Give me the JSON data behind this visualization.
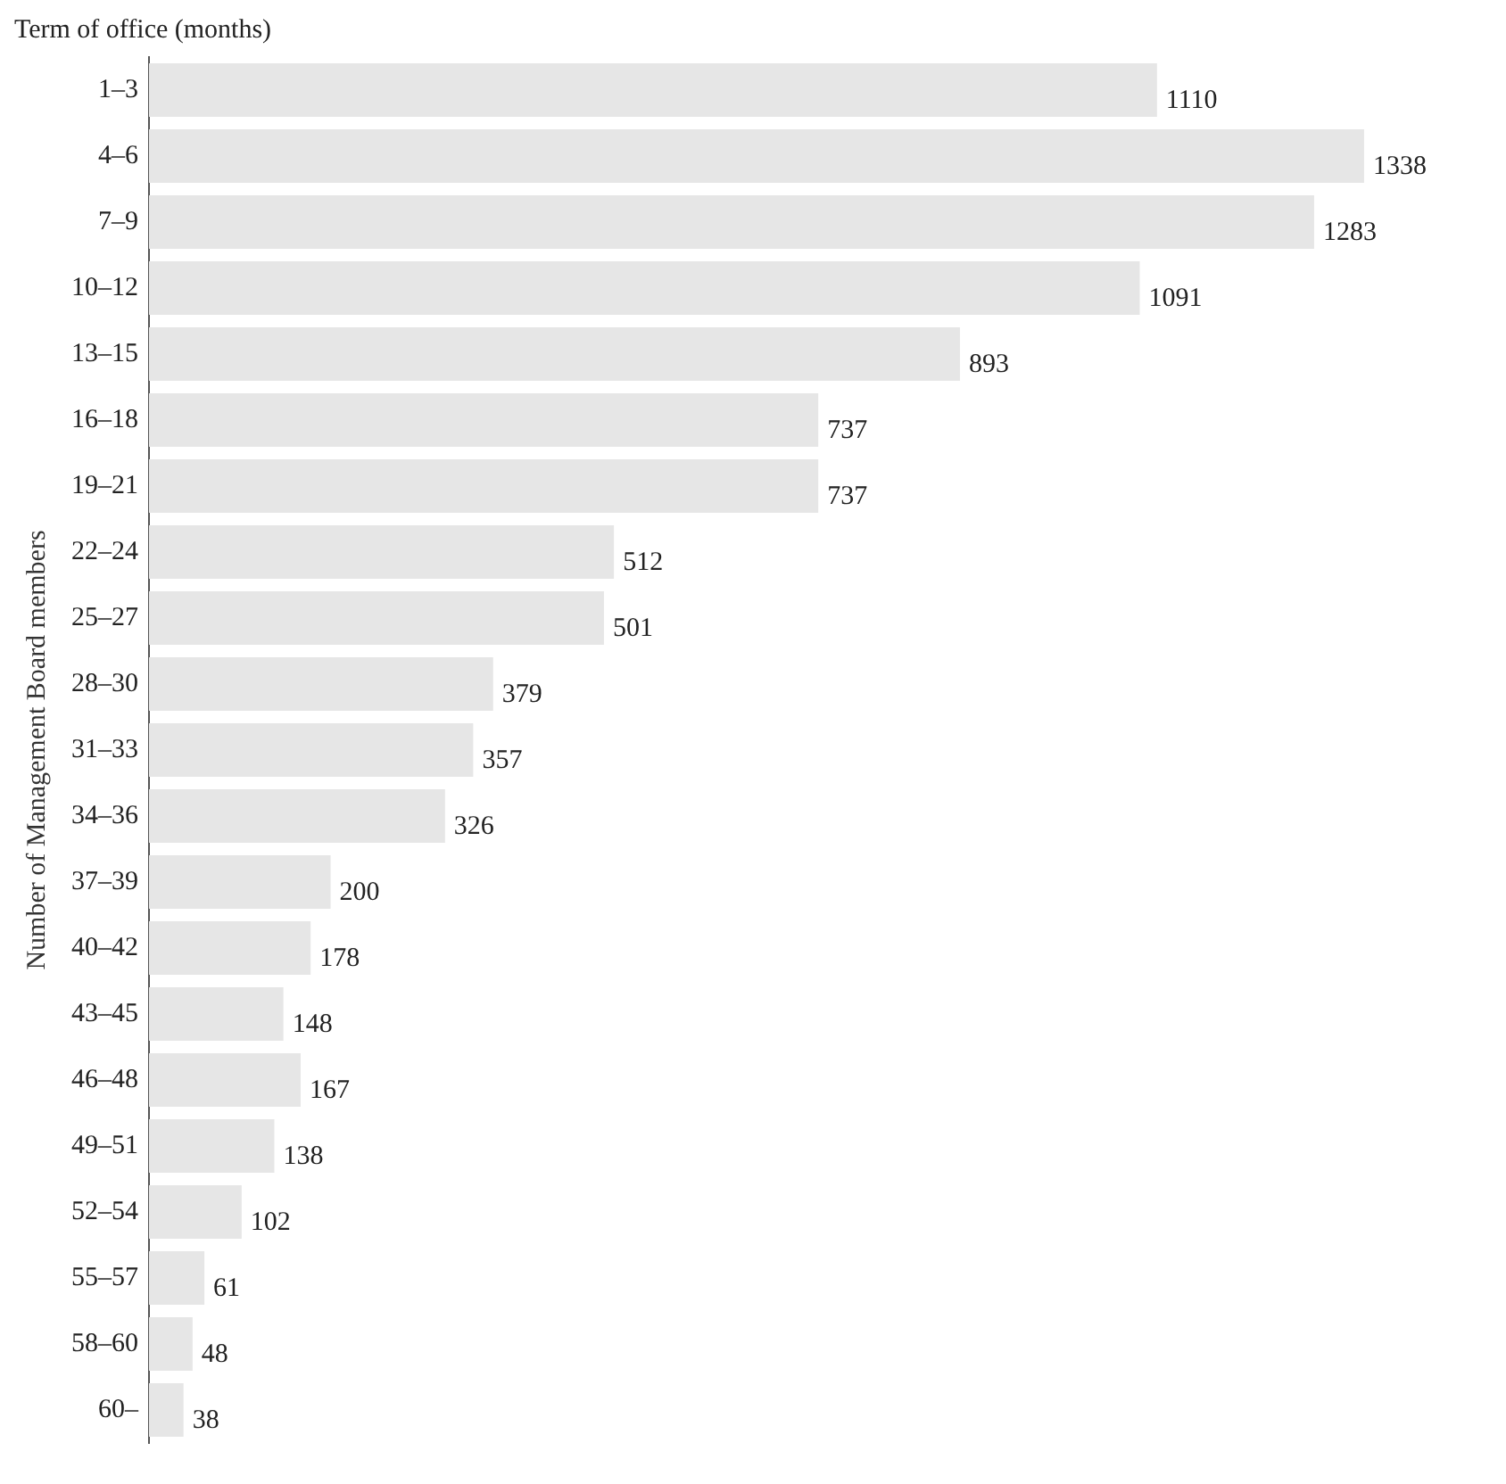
{
  "chart_data": {
    "type": "bar",
    "orientation": "horizontal",
    "title": "Term of office (months)",
    "ylabel": "Number of Management Board members",
    "categories": [
      "1–3",
      "4–6",
      "7–9",
      "10–12",
      "13–15",
      "16–18",
      "19–21",
      "22–24",
      "25–27",
      "28–30",
      "31–33",
      "34–36",
      "37–39",
      "40–42",
      "43–45",
      "46–48",
      "49–51",
      "52–54",
      "55–57",
      "58–60",
      "60–"
    ],
    "values": [
      1110,
      1338,
      1283,
      1091,
      893,
      737,
      737,
      512,
      501,
      379,
      357,
      326,
      200,
      178,
      148,
      167,
      138,
      102,
      61,
      48,
      38
    ],
    "color": "#e6e6e6",
    "data_labels": true,
    "legend": false
  }
}
